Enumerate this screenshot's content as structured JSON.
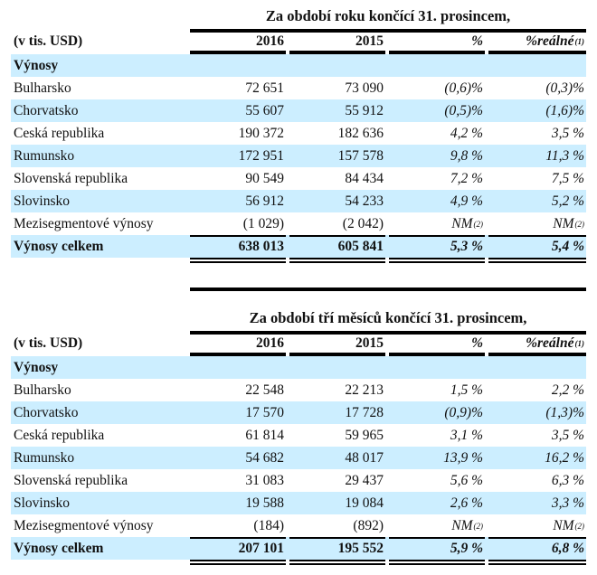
{
  "tables": [
    {
      "title": "Za období roku končící 31. prosincem,",
      "header": [
        "(v tis. USD)",
        "2016",
        "2015",
        "%",
        "%reálné"
      ],
      "header_sup": "(1)",
      "section": "Výnosy",
      "rows": [
        {
          "label": "Bulharsko",
          "cells": [
            "72 651",
            "73 090",
            "(0,6)%",
            "(0,3)%"
          ]
        },
        {
          "label": "Chorvatsko",
          "cells": [
            "55 607",
            "55 912",
            "(0,5)%",
            "(1,6)%"
          ]
        },
        {
          "label": "Ceská republika",
          "cells": [
            "190 372",
            "182 636",
            "4,2 %",
            "3,5 %"
          ]
        },
        {
          "label": "Rumunsko",
          "cells": [
            "172 951",
            "157 578",
            "9,8 %",
            "11,3 %"
          ]
        },
        {
          "label": "Slovenská republika",
          "cells": [
            "90 549",
            "84 434",
            "7,2 %",
            "7,5 %"
          ]
        },
        {
          "label": "Slovinsko",
          "cells": [
            "56 912",
            "54 233",
            "4,9 %",
            "5,2 %"
          ]
        },
        {
          "label": "Mezisegmentové výnosy",
          "cells": [
            "(1 029)",
            "(2 042)",
            "NM",
            "NM"
          ],
          "sups": [
            "",
            "",
            "(2)",
            "(2)"
          ]
        }
      ],
      "total": {
        "label": "Výnosy celkem",
        "cells": [
          "638 013",
          "605 841",
          "5,3 %",
          "5,4 %"
        ]
      }
    },
    {
      "title": "Za období tří měsíců končící 31. prosincem,",
      "header": [
        "(v tis. USD)",
        "2016",
        "2015",
        "%",
        "%reálné"
      ],
      "header_sup": "(1)",
      "section": "Výnosy",
      "rows": [
        {
          "label": "Bulharsko",
          "cells": [
            "22 548",
            "22 213",
            "1,5 %",
            "2,2 %"
          ]
        },
        {
          "label": "Chorvatsko",
          "cells": [
            "17 570",
            "17 728",
            "(0,9)%",
            "(1,3)%"
          ]
        },
        {
          "label": "Ceská republika",
          "cells": [
            "61 814",
            "59 965",
            "3,1 %",
            "3,5 %"
          ]
        },
        {
          "label": "Rumunsko",
          "cells": [
            "54 682",
            "48 017",
            "13,9 %",
            "16,2 %"
          ]
        },
        {
          "label": "Slovenská republika",
          "cells": [
            "31 083",
            "29 437",
            "5,6 %",
            "6,3 %"
          ]
        },
        {
          "label": "Slovinsko",
          "cells": [
            "19 588",
            "19 084",
            "2,6 %",
            "3,3 %"
          ]
        },
        {
          "label": "Mezisegmentové výnosy",
          "cells": [
            "(184)",
            "(892)",
            "NM ",
            "NM "
          ],
          "sups": [
            "",
            "",
            "(2)",
            "(2)"
          ]
        }
      ],
      "total": {
        "label": "Výnosy celkem",
        "cells": [
          "207 101",
          "195 552",
          "5,9 %",
          "6,8 %"
        ]
      }
    }
  ]
}
